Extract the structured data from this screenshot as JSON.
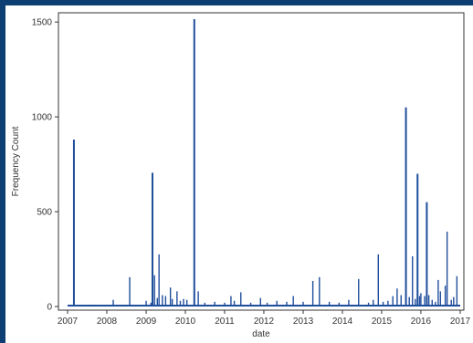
{
  "chart_data": {
    "type": "bar",
    "xlabel": "date",
    "ylabel": "Frequency Count",
    "xlim": [
      "2007-01-01",
      "2017-01-01"
    ],
    "ylim": [
      0,
      1520
    ],
    "x_ticks": [
      "2007",
      "2008",
      "2009",
      "2010",
      "2011",
      "2012",
      "2013",
      "2014",
      "2015",
      "2016",
      "2017"
    ],
    "y_ticks": [
      0,
      500,
      1000,
      1500
    ],
    "grid": false,
    "colors": {
      "bars": "#1f4e9c",
      "frame": "#333333",
      "background": "#ffffff",
      "border": "#0d3f73"
    },
    "x": [
      "2007-03-01",
      "2007-09-01",
      "2008-03-01",
      "2008-06-01",
      "2008-08-01",
      "2009-01-01",
      "2009-02-15",
      "2009-03-01",
      "2009-03-20",
      "2009-04-15",
      "2009-05-01",
      "2009-06-01",
      "2009-07-01",
      "2009-08-15",
      "2009-09-01",
      "2009-10-15",
      "2009-11-15",
      "2009-12-15",
      "2010-01-15",
      "2010-03-25",
      "2010-05-01",
      "2010-07-01",
      "2010-10-01",
      "2011-01-01",
      "2011-03-01",
      "2011-04-01",
      "2011-06-01",
      "2011-09-01",
      "2011-12-01",
      "2012-02-01",
      "2012-05-01",
      "2012-08-01",
      "2012-10-01",
      "2013-01-01",
      "2013-04-01",
      "2013-06-01",
      "2013-09-01",
      "2013-12-01",
      "2014-03-01",
      "2014-06-01",
      "2014-09-01",
      "2014-10-15",
      "2014-12-01",
      "2015-01-15",
      "2015-03-01",
      "2015-04-15",
      "2015-05-25",
      "2015-07-01",
      "2015-08-15",
      "2015-09-15",
      "2015-10-15",
      "2015-11-10",
      "2015-12-01",
      "2015-12-20",
      "2016-01-01",
      "2016-02-05",
      "2016-02-25",
      "2016-03-15",
      "2016-04-15",
      "2016-05-15",
      "2016-06-10",
      "2016-07-01",
      "2016-08-15",
      "2016-09-01",
      "2016-10-10",
      "2016-11-01",
      "2016-12-01"
    ],
    "values": [
      880,
      10,
      35,
      10,
      155,
      30,
      20,
      705,
      165,
      45,
      275,
      60,
      55,
      100,
      40,
      80,
      30,
      40,
      35,
      1515,
      80,
      20,
      25,
      20,
      55,
      30,
      75,
      20,
      45,
      20,
      30,
      25,
      55,
      25,
      135,
      155,
      25,
      20,
      35,
      145,
      20,
      35,
      275,
      25,
      30,
      55,
      95,
      60,
      1050,
      50,
      265,
      40,
      700,
      55,
      70,
      55,
      550,
      60,
      35,
      25,
      140,
      80,
      110,
      395,
      35,
      50,
      160
    ]
  }
}
